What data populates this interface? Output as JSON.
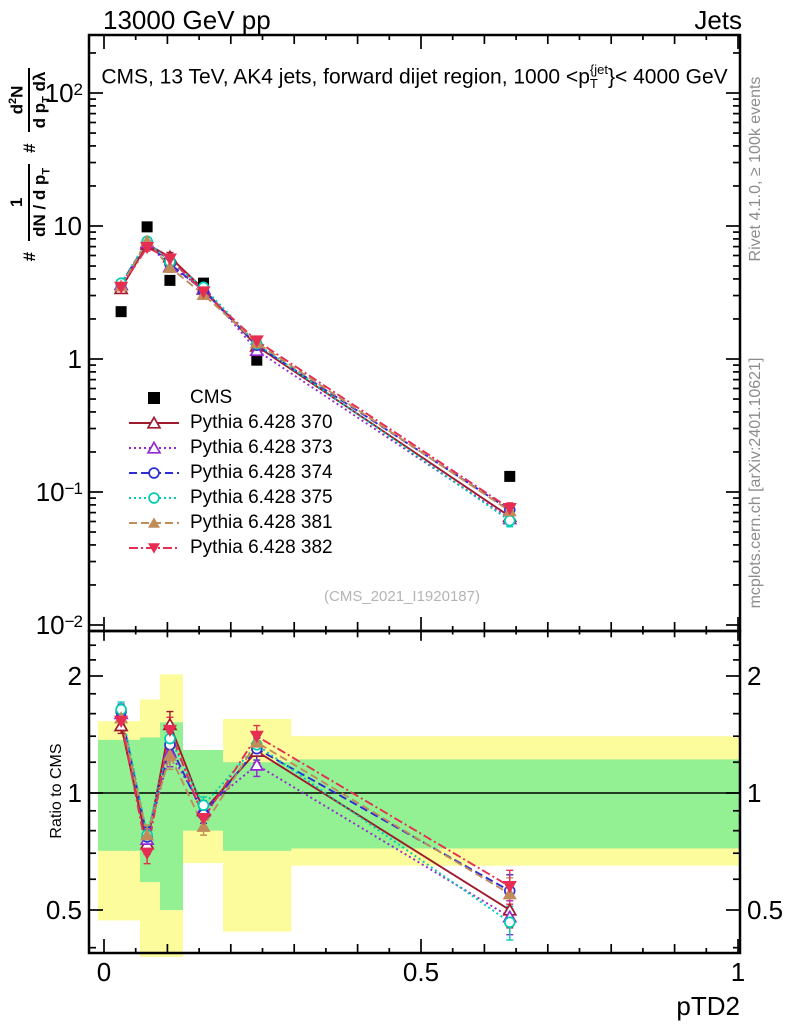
{
  "header": {
    "left": "13000 GeV pp",
    "right": "Jets"
  },
  "title": {
    "pre": "CMS, 13 TeV, AK4 jets, forward dijet region, 1000 <p",
    "sup": "{jet",
    "sub": "T",
    "post": "}< 4000 GeV"
  },
  "ylabel": {
    "h1": "#",
    "f1n": "1",
    "f1dp": "dN / d p",
    "f1ds": "T",
    "h2": "#",
    "f2np": "d",
    "f2ns": "2",
    "f2nq": "N",
    "f2dp": "d p",
    "f2ds": "T",
    "f2dq": " dλ"
  },
  "ratio_ylabel": "Ratio to CMS",
  "watermark": "(CMS_2021_I1920187)",
  "side_notes": {
    "top": "Rivet 4.1.0, ≥ 100k events",
    "bottom": "mcplots.cern.ch [arXiv:2401.10621]"
  },
  "colors": {
    "band_yellow": "#fcfc9c",
    "band_green": "#93f093",
    "frame": "#000000",
    "cms": "#000000"
  },
  "axis": {
    "xlabel": "pTD2",
    "x_ticks": [
      {
        "v": 0,
        "label": "0"
      },
      {
        "v": 0.5,
        "label": "0.5"
      },
      {
        "v": 1,
        "label": "1"
      }
    ],
    "main_y_ticks": [
      {
        "exp": 2,
        "base": "10",
        "sup": "2"
      },
      {
        "exp": 1,
        "base": "10",
        "sup": ""
      },
      {
        "exp": 0,
        "base": "1",
        "sup": ""
      },
      {
        "exp": -1,
        "base": "10",
        "sup": "−1"
      },
      {
        "exp": -2,
        "base": "10",
        "sup": "−2"
      }
    ],
    "ratio_y_ticks": [
      {
        "v": 2,
        "label": "2"
      },
      {
        "v": 1,
        "label": "1"
      },
      {
        "v": 0.5,
        "label": "0.5"
      }
    ],
    "ratio_y_minor": [
      0.4,
      0.6,
      0.7,
      0.8,
      0.9,
      1.2,
      1.4,
      1.6,
      1.8,
      2.2,
      2.4,
      2.6
    ]
  },
  "chart_data": {
    "type": "line",
    "title": "CMS, 13 TeV, AK4 jets, forward dijet region, 1000 < pT{jet} < 4000 GeV",
    "xlabel": "pTD2",
    "ylabel": "# 1/(dN/dpT) # d2N/(dpT dlambda)",
    "ratio_label": "Ratio to CMS",
    "xlim": [
      -0.0237,
      1.0032
    ],
    "main_ylim": [
      0.0092,
      273
    ],
    "ratio_ylim": [
      0.387,
      2.63
    ],
    "x_points": [
      0.027,
      0.068,
      0.104,
      0.157,
      0.241,
      0.64
    ],
    "cms": {
      "name": "CMS",
      "marker": "square-filled",
      "color": "#000000",
      "values": [
        2.27,
        9.85,
        3.9,
        3.72,
        0.98,
        0.131
      ]
    },
    "err_frac": [
      0.045,
      0.06,
      0.08,
      0.05,
      0.065,
      0.1
    ],
    "series": [
      {
        "id": "s0",
        "name": "Pythia 6.428 370",
        "color": "#a01a2e",
        "line_style": "solid",
        "marker": "triangle-up-open",
        "values": [
          3.38,
          7.29,
          5.85,
          3.35,
          1.25,
          0.0655
        ],
        "ratio": [
          1.49,
          0.74,
          1.5,
          0.9,
          1.28,
          0.5
        ]
      },
      {
        "id": "s1",
        "name": "Pythia 6.428 373",
        "color": "#9327d6",
        "line_style": "dotted",
        "marker": "triangle-up-open",
        "values": [
          3.63,
          7.49,
          4.95,
          3.39,
          1.16,
          0.0629
        ],
        "ratio": [
          1.6,
          0.76,
          1.27,
          0.91,
          1.18,
          0.48
        ]
      },
      {
        "id": "s2",
        "name": "Pythia 6.428 374",
        "color": "#2d2dd4",
        "line_style": "dashed",
        "marker": "circle-open",
        "values": [
          3.68,
          7.58,
          5.19,
          3.27,
          1.27,
          0.0734
        ],
        "ratio": [
          1.62,
          0.77,
          1.33,
          0.88,
          1.3,
          0.56
        ]
      },
      {
        "id": "s3",
        "name": "Pythia 6.428 375",
        "color": "#00ccb0",
        "line_style": "dotted",
        "marker": "circle-open",
        "values": [
          3.72,
          7.68,
          5.38,
          3.46,
          1.3,
          0.0609
        ],
        "ratio": [
          1.64,
          0.78,
          1.38,
          0.93,
          1.33,
          0.465
        ]
      },
      {
        "id": "s4",
        "name": "Pythia 6.428 381",
        "color": "#c08c5a",
        "line_style": "dashed",
        "marker": "triangle-up-filled",
        "values": [
          3.54,
          7.68,
          4.88,
          3.05,
          1.32,
          0.0721
        ],
        "ratio": [
          1.56,
          0.78,
          1.25,
          0.82,
          1.35,
          0.55
        ]
      },
      {
        "id": "s5",
        "name": "Pythia 6.428 382",
        "color": "#e62e52",
        "line_style": "dashdot",
        "marker": "triangle-down-filled",
        "values": [
          3.47,
          6.9,
          5.66,
          3.2,
          1.37,
          0.0753
        ],
        "ratio": [
          1.53,
          0.7,
          1.45,
          0.86,
          1.4,
          0.575
        ]
      }
    ],
    "ratio_bands": {
      "edges": [
        -0.0095,
        0.0568,
        0.0883,
        0.1246,
        0.1877,
        0.2957,
        1.0032
      ],
      "yellow": [
        [
          0.47,
          1.53
        ],
        [
          0.38,
          1.74
        ],
        [
          0.38,
          2.02
        ],
        [
          0.66,
          1.29
        ],
        [
          0.44,
          1.55
        ],
        [
          0.65,
          1.4
        ]
      ],
      "green": [
        [
          0.71,
          1.37
        ],
        [
          0.59,
          1.39
        ],
        [
          0.5,
          1.52
        ],
        [
          0.8,
          1.29
        ],
        [
          0.71,
          1.2
        ],
        [
          0.72,
          1.22
        ]
      ]
    }
  },
  "legend": {
    "cms_label": "CMS"
  }
}
